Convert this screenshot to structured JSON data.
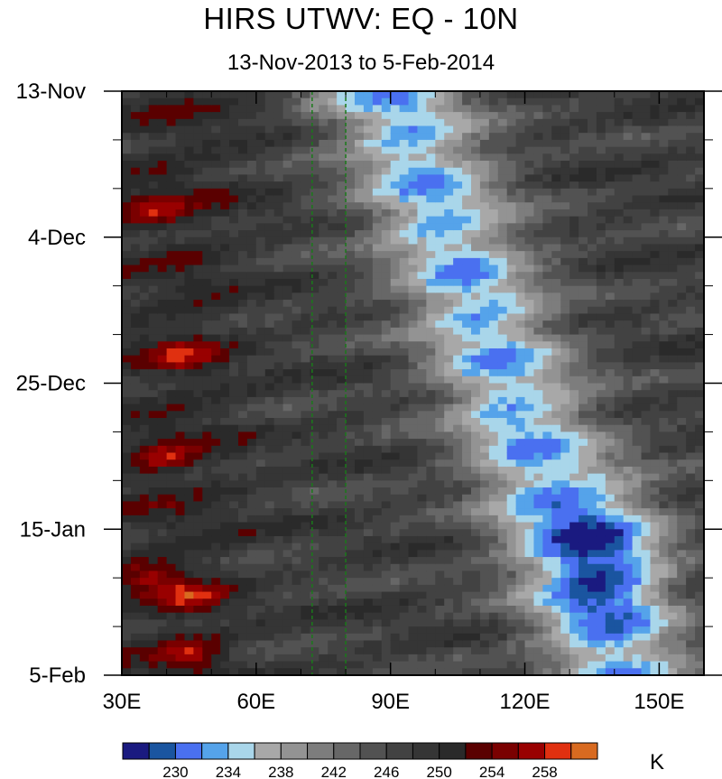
{
  "chart_data": {
    "type": "heatmap",
    "title": "HIRS UTWV: EQ - 10N",
    "subtitle": "13-Nov-2013 to 5-Feb-2014",
    "x_ticks": [
      {
        "value": 30,
        "label": "30E"
      },
      {
        "value": 60,
        "label": "60E"
      },
      {
        "value": 90,
        "label": "90E"
      },
      {
        "value": 120,
        "label": "120E"
      },
      {
        "value": 150,
        "label": "150E"
      }
    ],
    "xlim": [
      30,
      160
    ],
    "y_ticks": [
      {
        "day": 0,
        "label": "13-Nov"
      },
      {
        "day": 21,
        "label": "4-Dec"
      },
      {
        "day": 42,
        "label": "25-Dec"
      },
      {
        "day": 63,
        "label": "15-Jan"
      },
      {
        "day": 84,
        "label": "5-Feb"
      }
    ],
    "ylim": [
      0,
      84
    ],
    "reference_lines_longitude": [
      72.5,
      80
    ],
    "reference_line_color": "#1a7a1a",
    "colorbar": {
      "unit": "K",
      "labels": [
        "230",
        "234",
        "238",
        "242",
        "246",
        "250",
        "254",
        "258"
      ],
      "label_values": [
        230,
        234,
        238,
        242,
        246,
        250,
        254,
        258
      ],
      "levels": [
        228,
        230,
        232,
        234,
        236,
        238,
        240,
        242,
        244,
        246,
        248,
        250,
        252,
        254,
        256,
        258,
        260
      ],
      "colors": [
        "#1a1a80",
        "#1a55a0",
        "#4a70f0",
        "#55a3ea",
        "#a9d6ea",
        "#a8a8a8",
        "#939393",
        "#7d7d7d",
        "#676767",
        "#525252",
        "#424242",
        "#353535",
        "#2a2a2a",
        "#5a0000",
        "#7a0000",
        "#990000",
        "#e03010",
        "#d86a20"
      ]
    }
  },
  "title": "HIRS UTWV: EQ - 10N",
  "subtitle": "13-Nov-2013 to 5-Feb-2014"
}
